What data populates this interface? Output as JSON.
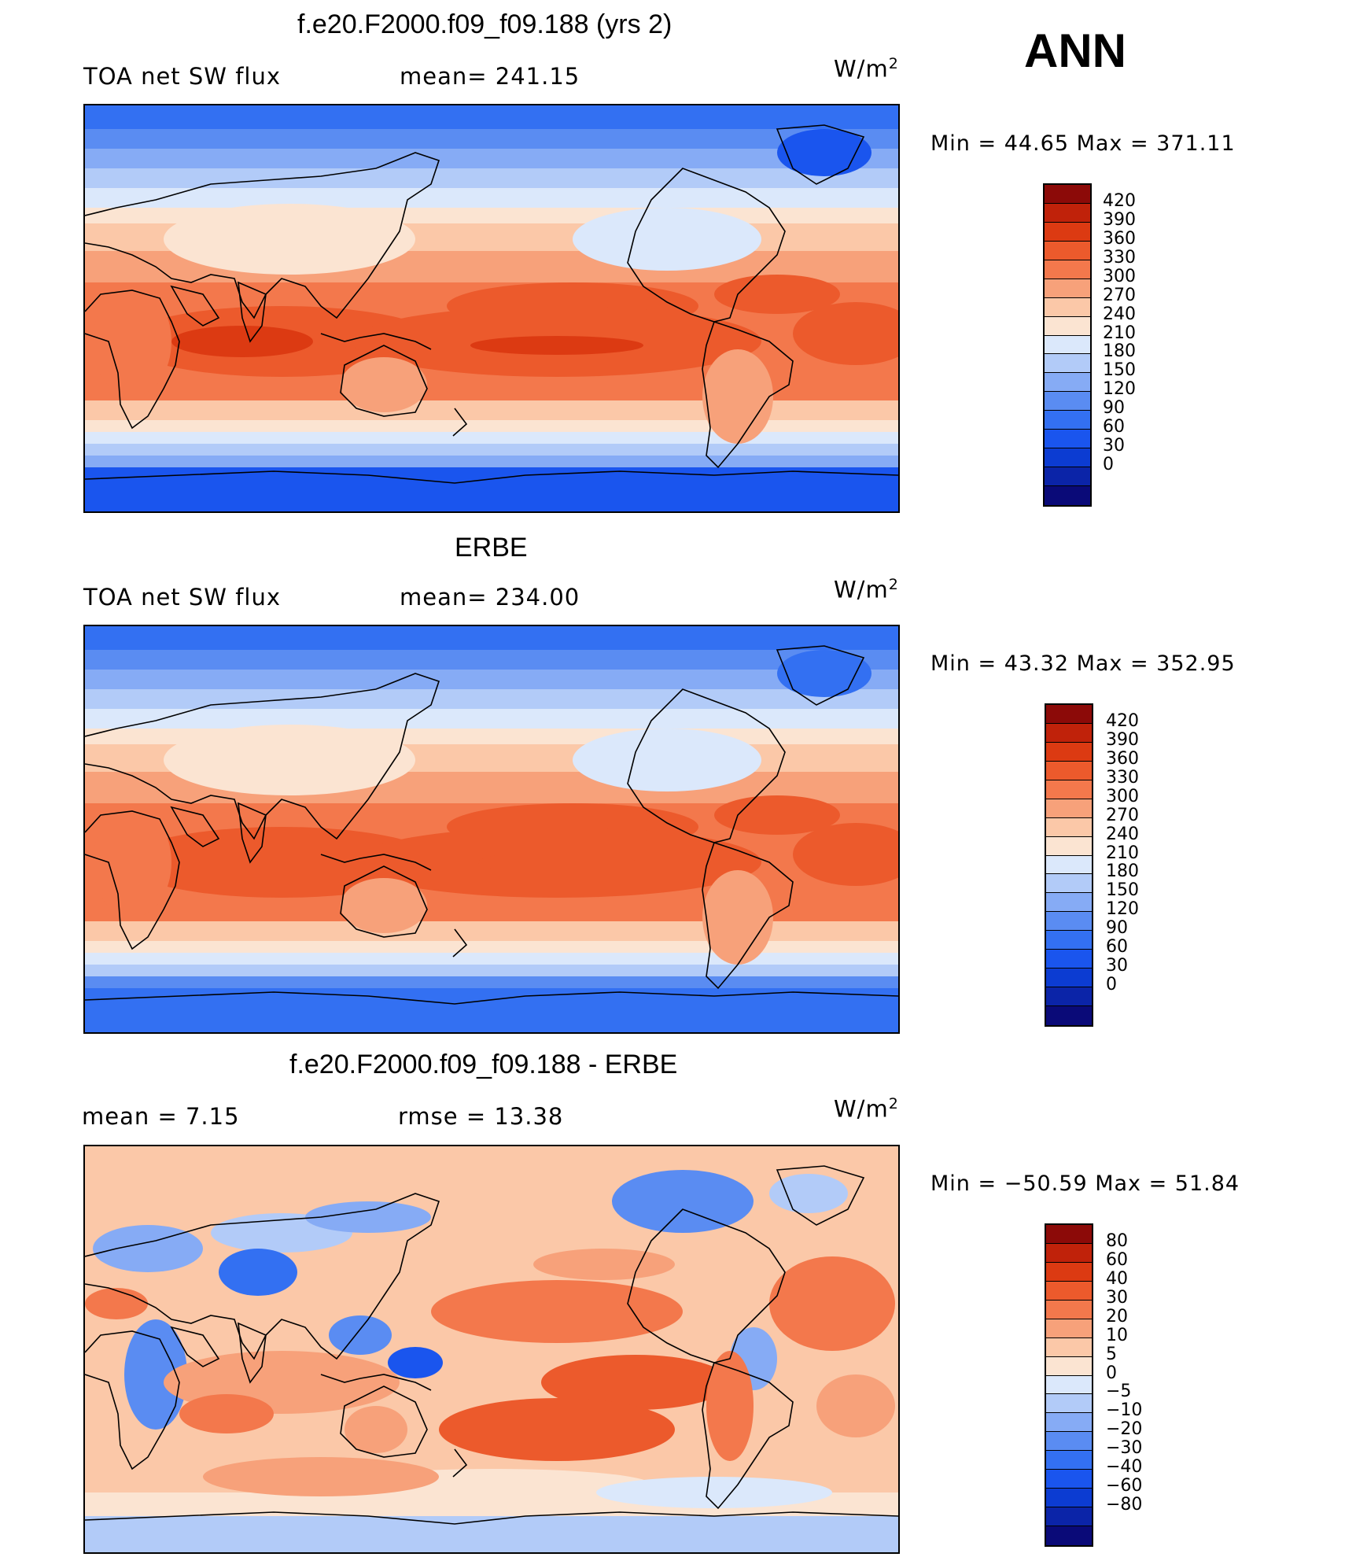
{
  "season": "ANN",
  "colors": {
    "abs": [
      "#0a0a78",
      "#0b24a8",
      "#0c3cd2",
      "#1a55ee",
      "#3370f2",
      "#5a8cf2",
      "#86abf5",
      "#b2cbf8",
      "#dbe8fb",
      "#fbe4d2",
      "#fbc8a8",
      "#f7a17a",
      "#f3784c",
      "#ec5a2c",
      "#dc3a12",
      "#c0220a",
      "#8c0a08"
    ],
    "diff": [
      "#0a0a78",
      "#0b24a8",
      "#0c3cd2",
      "#1a55ee",
      "#3370f2",
      "#5a8cf2",
      "#86abf5",
      "#b2cbf8",
      "#dbe8fb",
      "#fbe4d2",
      "#fbc8a8",
      "#f7a17a",
      "#f3784c",
      "#ec5a2c",
      "#dc3a12",
      "#c0220a",
      "#8c0a08"
    ]
  },
  "panels": [
    {
      "title": "f.e20.F2000.f09_f09.188 (yrs 2)",
      "left_label": "TOA net SW flux",
      "mid_label": "mean=  241.15",
      "units": "W/m",
      "units_sup": "2",
      "minmax": "Min  =    44.65  Max  =  371.11",
      "levels": [
        "420",
        "390",
        "360",
        "330",
        "300",
        "270",
        "240",
        "210",
        "180",
        "150",
        "120",
        "90",
        "60",
        "30",
        "0"
      ],
      "map_kind": "model"
    },
    {
      "title": "ERBE",
      "left_label": "TOA net SW flux",
      "mid_label": "mean=  234.00",
      "units": "W/m",
      "units_sup": "2",
      "minmax": "Min  =    43.32  Max  =  352.95",
      "levels": [
        "420",
        "390",
        "360",
        "330",
        "300",
        "270",
        "240",
        "210",
        "180",
        "150",
        "120",
        "90",
        "60",
        "30",
        "0"
      ],
      "map_kind": "obs"
    },
    {
      "title": "f.e20.F2000.f09_f09.188 - ERBE",
      "left_label": "mean  =      7.15",
      "mid_label": "rmse  =     13.38",
      "units": "W/m",
      "units_sup": "2",
      "minmax": "Min  = −50.59  Max  =    51.84",
      "levels": [
        "80",
        "60",
        "40",
        "30",
        "20",
        "10",
        "5",
        "0",
        "−5",
        "−10",
        "−20",
        "−30",
        "−40",
        "−60",
        "−80"
      ],
      "map_kind": "diff"
    }
  ]
}
